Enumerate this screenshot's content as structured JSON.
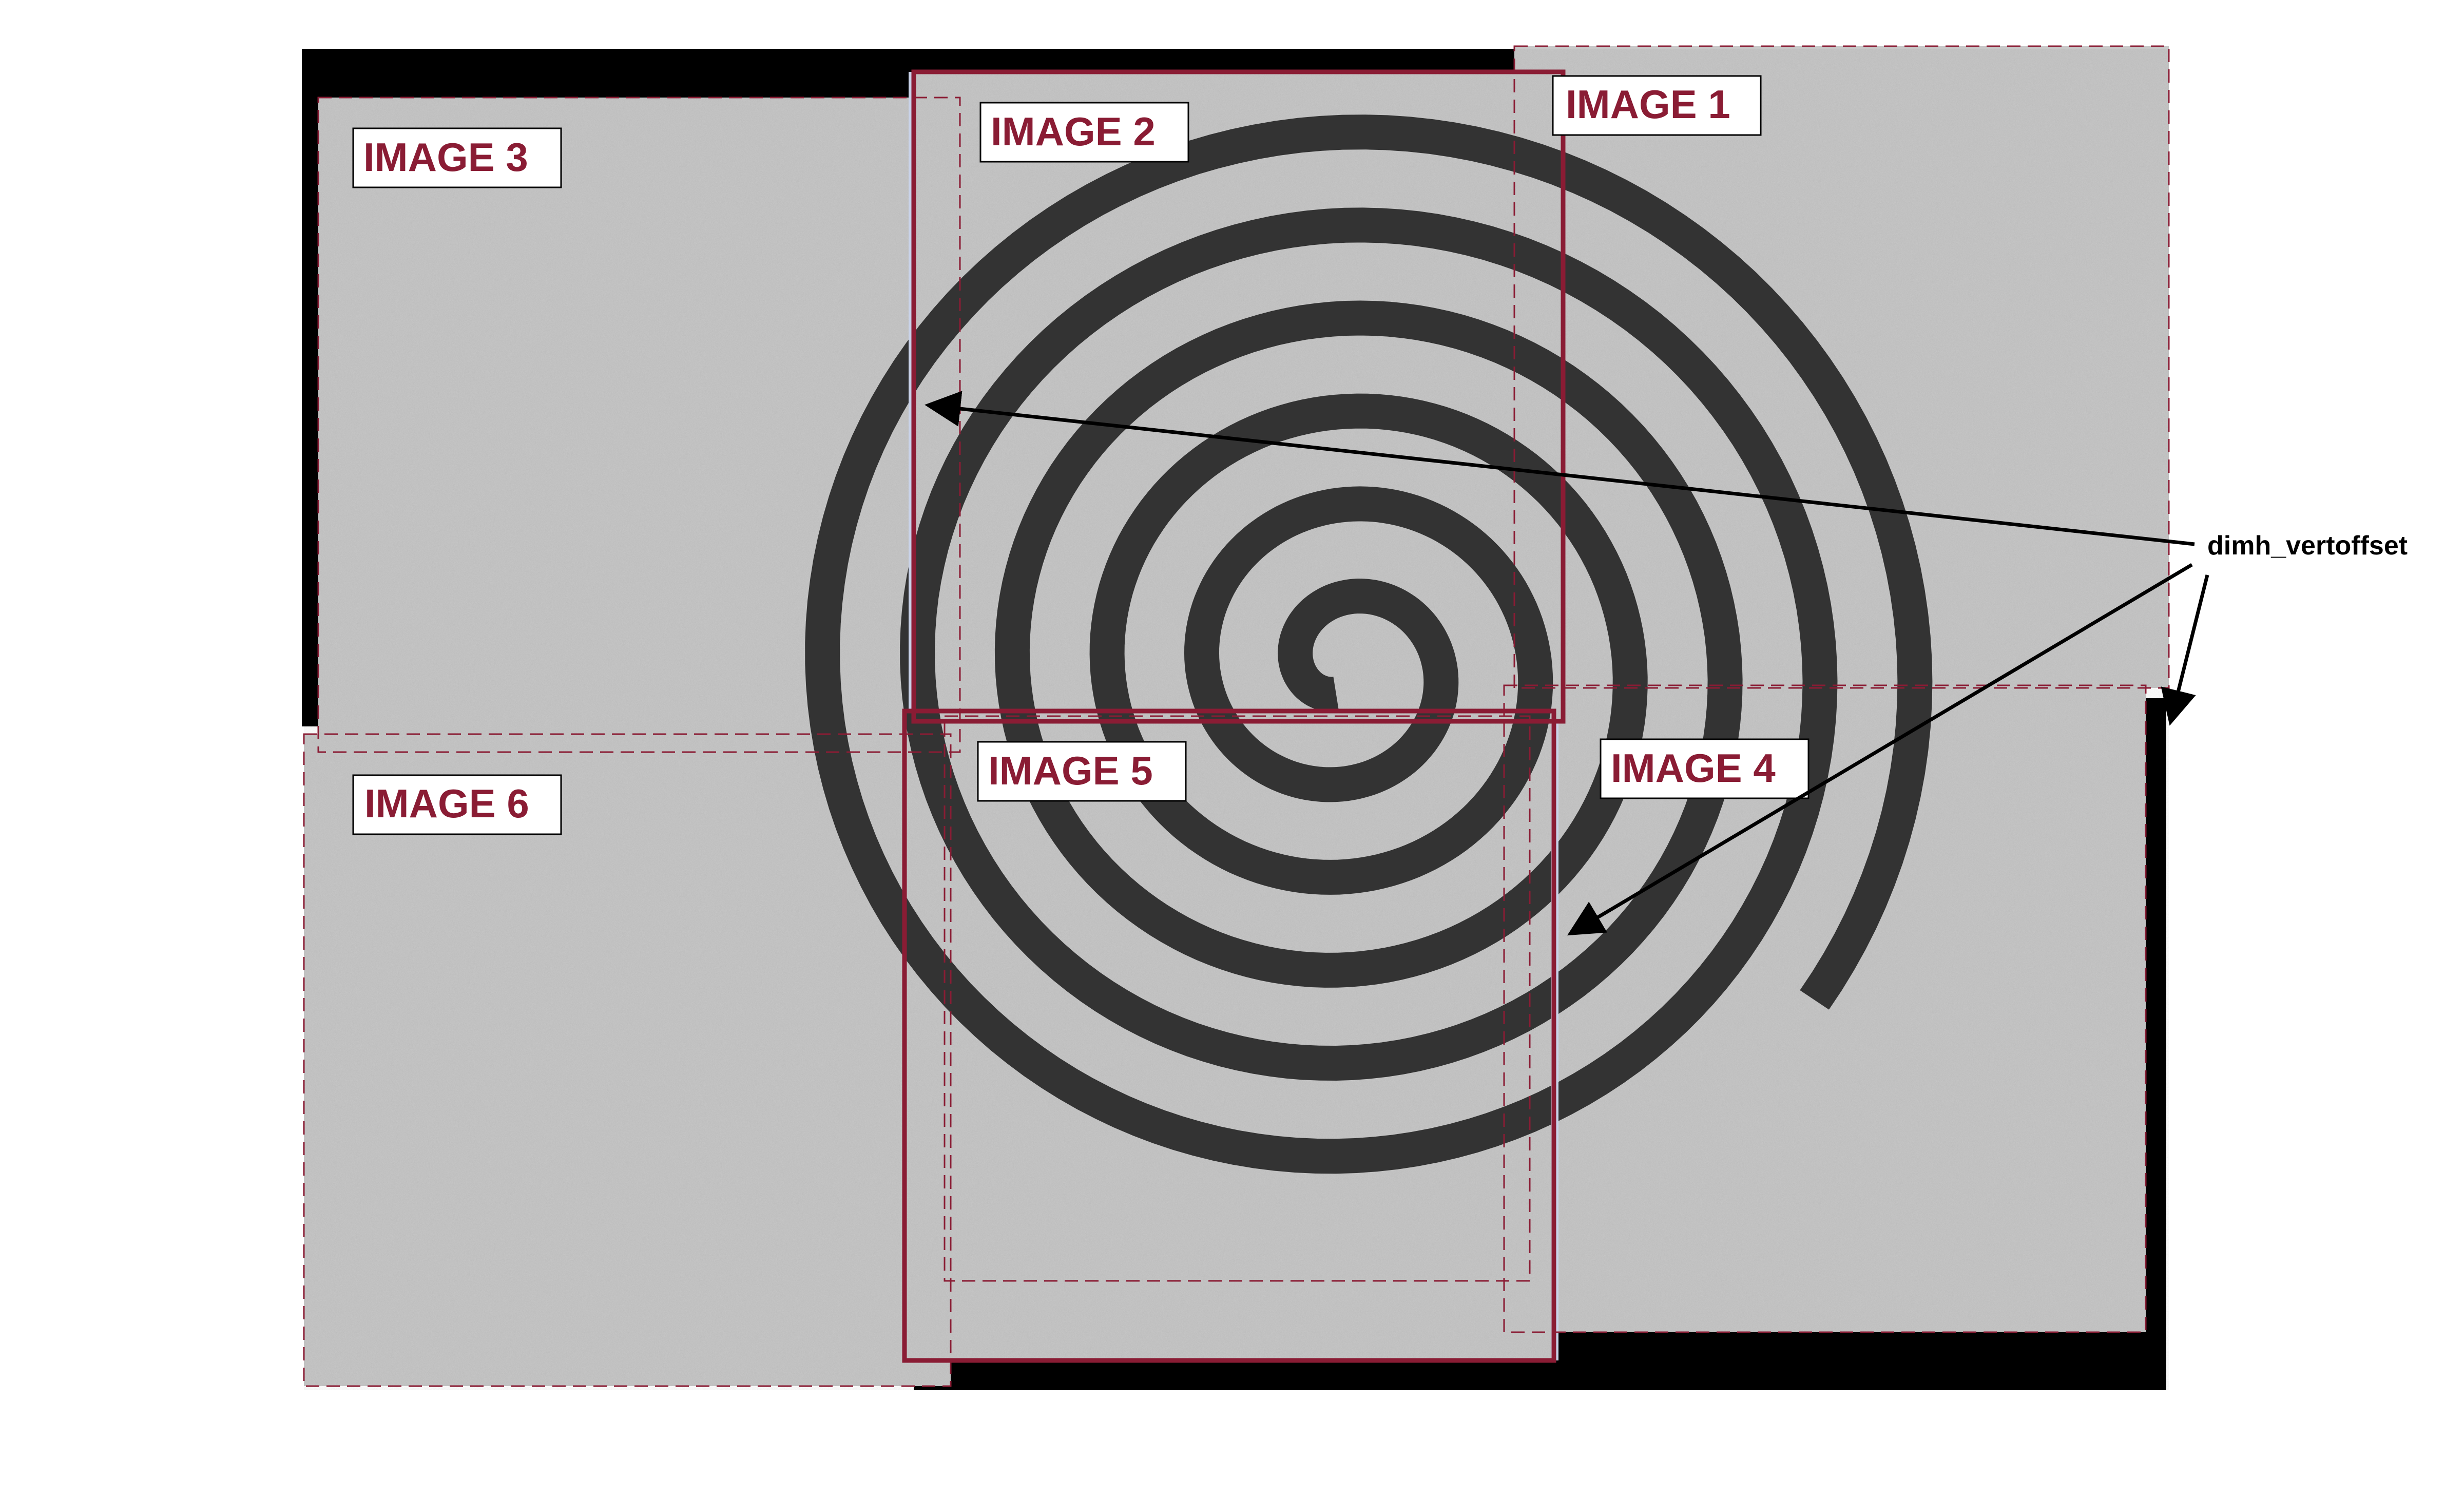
{
  "diagram": {
    "tiles": [
      {
        "id": "image1",
        "label": "IMAGE 1"
      },
      {
        "id": "image2",
        "label": "IMAGE 2"
      },
      {
        "id": "image3",
        "label": "IMAGE 3"
      },
      {
        "id": "image4",
        "label": "IMAGE 4"
      },
      {
        "id": "image5",
        "label": "IMAGE 5"
      },
      {
        "id": "image6",
        "label": "IMAGE 6"
      }
    ],
    "annotation": {
      "label": "dimh_vertoffset"
    },
    "colors": {
      "frame": "#8a1c34",
      "spiral": "#333333",
      "background_noise": "#c8c8c8",
      "seam": "#c9d3ea",
      "canvas": "#000000"
    }
  }
}
